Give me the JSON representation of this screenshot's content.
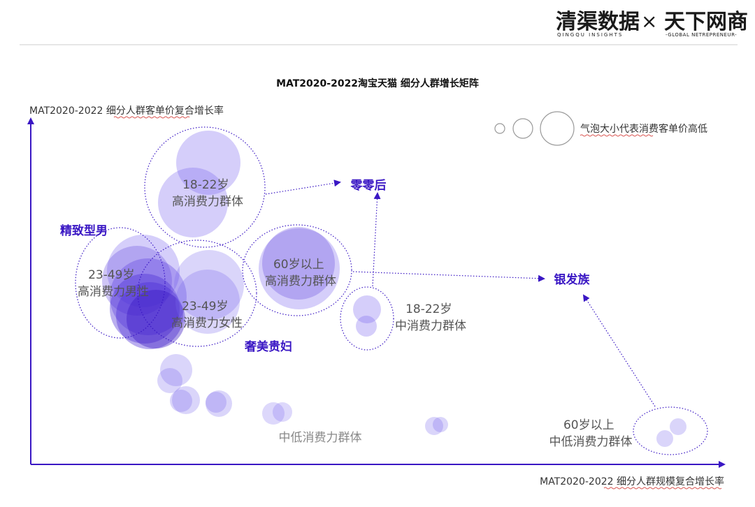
{
  "header": {
    "brand_left": "清渠数据",
    "brand_left_sub": "QINGQU INSIGHTS",
    "times_symbol": "×",
    "brand_right": "天下网商",
    "brand_right_sub": "-GLOBAL NETREPRENEUR-"
  },
  "colors": {
    "accent": "#3a17c4",
    "bubble": "#7b68ee",
    "axis": "#3a17c4",
    "divider": "#cccccc"
  },
  "legend": {
    "text": "气泡大小代表消费客单价高低"
  },
  "chart_data": {
    "type": "bubble",
    "title": "MAT2020-2022淘宝天猫 细分人群增长矩阵",
    "ylabel": "MAT2020-2022 细分人群客单价复合增长率",
    "xlabel": "MAT2020-2022 细分人群规模复合增长率",
    "axis_ticks": false,
    "groups": [
      {
        "name": "18-22岁\n高消费力群体",
        "lines": [
          "18-22岁",
          "高消费力群体"
        ]
      },
      {
        "name": "23-49岁\n高消费力男性",
        "lines": [
          "23-49岁",
          "高消费力男性"
        ]
      },
      {
        "name": "23-49岁\n高消费力女性",
        "lines": [
          "23-49岁",
          "高消费力女性"
        ]
      },
      {
        "name": "60岁以上\n高消费力群体",
        "lines": [
          "60岁以上",
          "高消费力群体"
        ]
      },
      {
        "name": "18-22岁\n中消费力群体",
        "lines": [
          "18-22岁",
          "中消费力群体"
        ]
      },
      {
        "name": "中低消费力群体",
        "lines": [
          "中低消费力群体"
        ]
      },
      {
        "name": "60岁以上\n中低消费力群体",
        "lines": [
          "60岁以上",
          "中低消费力群体"
        ]
      }
    ],
    "segments": [
      "零零后",
      "精致型男",
      "银发族",
      "奢美贵妇"
    ],
    "bubble_count": 26
  }
}
